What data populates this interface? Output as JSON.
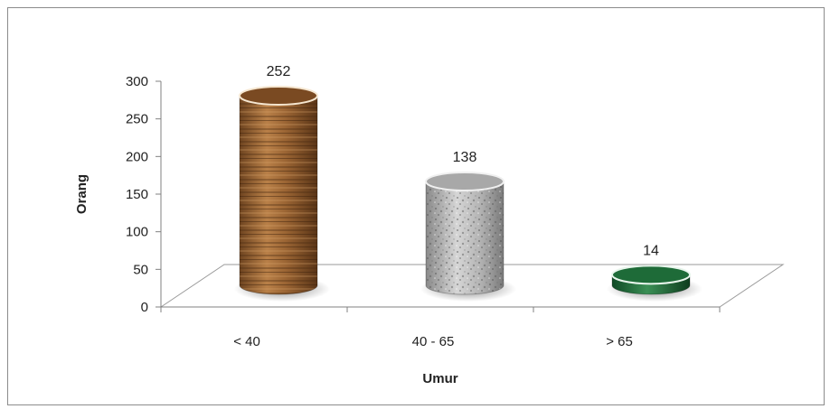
{
  "chart_data": {
    "type": "bar",
    "style": "3d-cylinder",
    "categories": [
      "< 40",
      "40 - 65",
      "> 65"
    ],
    "values": [
      252,
      138,
      14
    ],
    "data_labels": [
      "252",
      "138",
      "14"
    ],
    "title": "",
    "xlabel": "Umur",
    "ylabel": "Orang",
    "ylim": [
      0,
      300
    ],
    "yticks": [
      "0",
      "50",
      "100",
      "150",
      "200",
      "250",
      "300"
    ],
    "grid": false,
    "legend": "none",
    "colors": {
      "bar_1_wood": "#8a5a2b",
      "bar_2_granite": "#9e9e9e",
      "bar_3_marble": "#1f6b3a",
      "axis": "#808080",
      "floor": "#999999"
    }
  }
}
